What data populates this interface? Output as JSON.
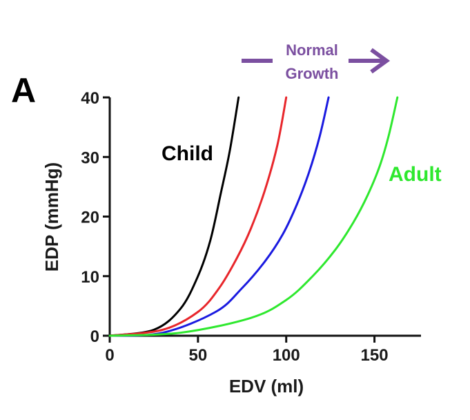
{
  "panel_label": "A",
  "annotation": {
    "line1": "Normal",
    "line2": "Growth",
    "color": "#7B4FA0"
  },
  "chart_data": {
    "type": "line",
    "title": "",
    "xlabel": "EDV (ml)",
    "ylabel": "EDP (mmHg)",
    "xlim": [
      0,
      175
    ],
    "ylim": [
      0,
      40
    ],
    "xticks": [
      0,
      50,
      100,
      150
    ],
    "yticks": [
      0,
      10,
      20,
      30,
      40
    ],
    "grid": false,
    "series": [
      {
        "name": "Child",
        "color": "#000000",
        "x": [
          0,
          25,
          40,
          50,
          57,
          63,
          68,
          73
        ],
        "y": [
          0,
          1.0,
          4.5,
          10.0,
          16.0,
          24.0,
          31.0,
          40.0
        ]
      },
      {
        "name": "",
        "color": "#E8262B",
        "x": [
          0,
          30,
          50,
          62,
          72,
          80,
          88,
          95,
          100
        ],
        "y": [
          0,
          1.0,
          4.0,
          8.0,
          13.0,
          18.0,
          24.5,
          32.0,
          40.0
        ]
      },
      {
        "name": "",
        "color": "#1A1AE0",
        "x": [
          0,
          30,
          60,
          75,
          88,
          98,
          106,
          113,
          119,
          124
        ],
        "y": [
          0,
          0.5,
          4.0,
          8.0,
          12.5,
          17.0,
          22.0,
          27.5,
          33.5,
          40.0
        ]
      },
      {
        "name": "Adult",
        "color": "#2EE82E",
        "x": [
          0,
          40,
          80,
          100,
          115,
          128,
          138,
          146,
          153,
          158,
          163
        ],
        "y": [
          0,
          0.5,
          3.0,
          6.0,
          10.0,
          14.5,
          19.0,
          23.5,
          28.5,
          33.5,
          40.0
        ]
      }
    ],
    "labels": [
      {
        "text": "Child",
        "color": "#000000"
      },
      {
        "text": "Adult",
        "color": "#2EE82E"
      }
    ]
  }
}
